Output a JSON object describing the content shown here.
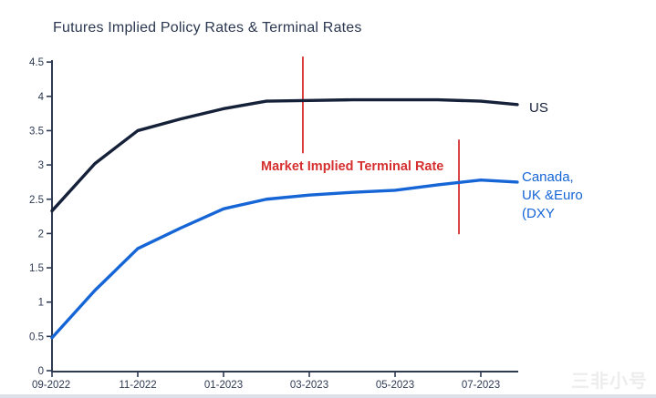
{
  "title": "Futures Implied Policy Rates & Terminal Rates",
  "labels": {
    "us": "US",
    "canada_line1": "Canada,",
    "canada_line2": "UK &Euro",
    "canada_line3": "(DXY",
    "terminal": "Market Implied Terminal Rate"
  },
  "watermark": "三非小号",
  "colors": {
    "us_line": "#152039",
    "canada_line": "#1565d6",
    "annotation_red": "#d62f2f",
    "axis": "#2e3a52",
    "title_text": "#2b3750",
    "watermark_gray": "#ededed"
  },
  "chart_data": {
    "type": "line",
    "title": "Futures Implied Policy Rates & Terminal Rates",
    "xlabel": "",
    "ylabel": "",
    "ylim": [
      0,
      4.5
    ],
    "grid": false,
    "y_ticks": [
      "0",
      "0.5",
      "1",
      "1.5",
      "2",
      "2.5",
      "3",
      "3.5",
      "4",
      "4.5"
    ],
    "x_ticks": [
      "09-2022",
      "11-2022",
      "01-2023",
      "03-2023",
      "05-2023",
      "07-2023"
    ],
    "x_months": [
      "09-2022",
      "10-2022",
      "11-2022",
      "12-2022",
      "01-2023",
      "02-2023",
      "03-2023",
      "04-2023",
      "05-2023",
      "06-2023",
      "07-2023",
      "08-2023"
    ],
    "series": [
      {
        "id": "us",
        "name": "US",
        "color": "#152039",
        "label_position": "right-of-line-end",
        "months": [
          0,
          1,
          2,
          3,
          4,
          5,
          6,
          7,
          8,
          9,
          10,
          10.85
        ],
        "values": [
          2.33,
          3.02,
          3.5,
          3.67,
          3.82,
          3.93,
          3.94,
          3.95,
          3.95,
          3.95,
          3.93,
          3.88
        ]
      },
      {
        "id": "canada_uk_euro",
        "name": "Canada, UK &Euro (DXY",
        "color": "#1565d6",
        "label_position": "right-of-line-end",
        "months": [
          0,
          1,
          2,
          3,
          4,
          5,
          6,
          7,
          8,
          9,
          10,
          10.85
        ],
        "values": [
          0.48,
          1.17,
          1.78,
          2.08,
          2.36,
          2.5,
          2.56,
          2.6,
          2.63,
          2.71,
          2.78,
          2.75
        ]
      }
    ],
    "annotations": {
      "terminal_rate_label": "Market Implied Terminal Rate",
      "color": "#d62f2f",
      "vlines": [
        {
          "x_month": 5.85,
          "v_from": 3.17,
          "v_to": 4.58
        },
        {
          "x_month": 9.49,
          "v_from": 1.99,
          "v_to": 3.37
        }
      ]
    },
    "legend_position": "labels-at-line-ends"
  }
}
